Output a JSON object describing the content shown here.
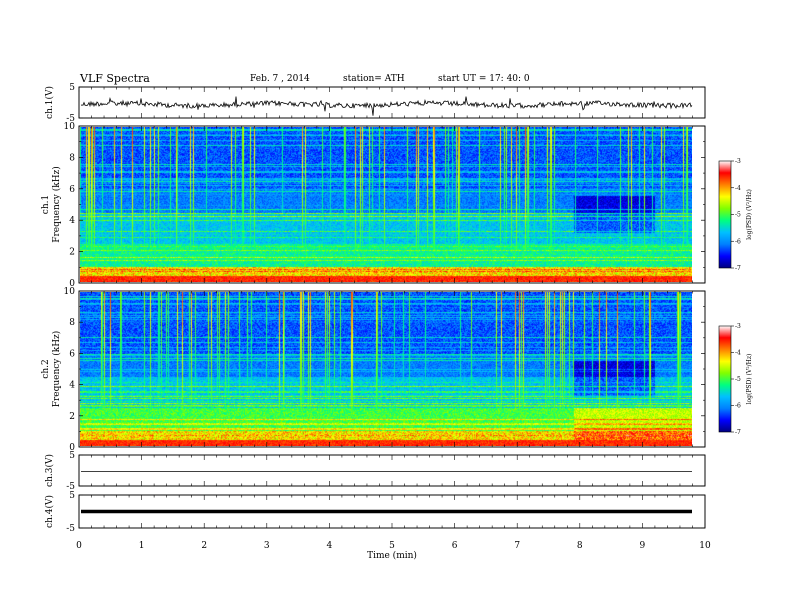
{
  "header": {
    "title": "VLF  Spectra",
    "date": "Feb. 7  , 2014",
    "station": "station= ATH",
    "start": "start  UT  =   17: 40: 0"
  },
  "chart_data": [
    {
      "type": "line",
      "panel": "ch1-waveform",
      "ylabel": "ch.1(V)",
      "ylim": [
        -5,
        5
      ],
      "yticks": [
        "5",
        "-5"
      ],
      "xlim": [
        0,
        10
      ],
      "note": "noisy signal around 0 V with sparse spikes"
    },
    {
      "type": "heatmap",
      "panel": "ch1-spectrogram",
      "ylabel": [
        "ch.1",
        "Frequency  (kHz)"
      ],
      "xlim": [
        0,
        10
      ],
      "ylim": [
        0,
        10
      ],
      "yticks": [
        "0",
        "2",
        "4",
        "6",
        "8",
        "10"
      ],
      "colorbar": {
        "label": "log(PSD) (V²/Hz)",
        "range": [
          -7,
          -3
        ],
        "ticks": [
          "-3",
          "-4",
          "-5",
          "-6",
          "-7"
        ]
      },
      "colormap": [
        "#000080",
        "#0000ff",
        "#0080ff",
        "#00c0ff",
        "#00ff80",
        "#80ff00",
        "#ffff00",
        "#ff8000",
        "#ff0000",
        "#ffffff"
      ]
    },
    {
      "type": "heatmap",
      "panel": "ch2-spectrogram",
      "ylabel": [
        "ch.2",
        "Frequency  (kHz)"
      ],
      "xlim": [
        0,
        10
      ],
      "ylim": [
        0,
        10
      ],
      "yticks": [
        "0",
        "2",
        "4",
        "6",
        "8",
        "10"
      ],
      "colorbar": {
        "label": "log(PSD) (V²/Hz)",
        "range": [
          -7,
          -3
        ],
        "ticks": [
          "-3",
          "-4",
          "-5",
          "-6",
          "-7"
        ]
      },
      "colormap": [
        "#000080",
        "#0000ff",
        "#0080ff",
        "#00c0ff",
        "#00ff80",
        "#80ff00",
        "#ffff00",
        "#ff8000",
        "#ff0000",
        "#ffffff"
      ]
    },
    {
      "type": "line",
      "panel": "ch3-waveform",
      "ylabel": "ch.3(V)",
      "ylim": [
        -5,
        5
      ],
      "yticks": [
        "5",
        "-5"
      ],
      "xlim": [
        0,
        10
      ],
      "note": "flat signal near 0 V"
    },
    {
      "type": "line",
      "panel": "ch4-waveform",
      "ylabel": "ch.4(V)",
      "ylim": [
        -5,
        5
      ],
      "yticks": [
        "5",
        "-5"
      ],
      "xlim": [
        0,
        10
      ],
      "note": "flat thick signal near 0 V"
    }
  ],
  "xaxis": {
    "label": "Time  (min)",
    "ticks": [
      "0",
      "1",
      "2",
      "3",
      "4",
      "5",
      "6",
      "7",
      "8",
      "9",
      "10"
    ]
  }
}
